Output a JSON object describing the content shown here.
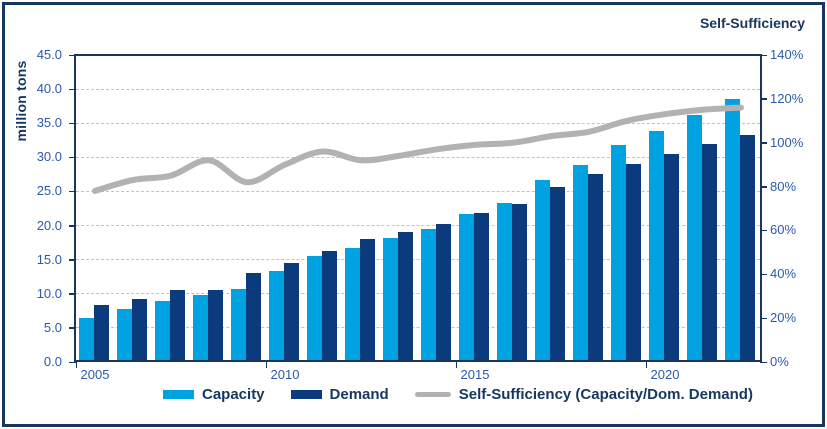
{
  "colors": {
    "capacity": "#00A2E2",
    "demand": "#0B3B7C",
    "line": "#B2B2B2",
    "navy": "#17375E",
    "tick_text": "#2B5BA9",
    "grid": "#C3C3C3"
  },
  "chart_data": {
    "type": "combo-bar-line",
    "categories": [
      2005,
      2006,
      2007,
      2008,
      2009,
      2010,
      2011,
      2012,
      2013,
      2014,
      2015,
      2016,
      2017,
      2018,
      2019,
      2020,
      2021,
      2022
    ],
    "series": [
      {
        "name": "Capacity",
        "type": "bar",
        "axis": "left",
        "values": [
          6.5,
          7.7,
          9.0,
          9.8,
          10.7,
          13.3,
          15.6,
          16.7,
          18.2,
          19.5,
          21.7,
          23.3,
          26.7,
          28.9,
          31.8,
          33.9,
          36.2,
          38.5
        ]
      },
      {
        "name": "Demand",
        "type": "bar",
        "axis": "left",
        "values": [
          8.3,
          9.2,
          10.6,
          10.6,
          13.0,
          14.5,
          16.2,
          18.0,
          19.1,
          20.2,
          21.8,
          23.2,
          25.7,
          27.6,
          29.0,
          30.5,
          32.0,
          33.3
        ]
      },
      {
        "name": "Self-Sufficiency (Capacity/Dom. Demand)",
        "type": "line",
        "axis": "right",
        "values": [
          78,
          83,
          85,
          92,
          82,
          90,
          96,
          92,
          94,
          97,
          99,
          100,
          103,
          105,
          110,
          113,
          115,
          116
        ]
      }
    ],
    "left_axis": {
      "label": "million tons",
      "range": [
        0,
        45
      ],
      "tick_step": 5,
      "tick_labels": [
        "45.0",
        "40.0",
        "35.0",
        "30.0",
        "25.0",
        "20.0",
        "15.0",
        "10.0",
        "5.0",
        "0.0"
      ]
    },
    "right_axis": {
      "label": "Self-Sufficiency",
      "range": [
        0,
        140
      ],
      "tick_step": 20,
      "unit": "%",
      "tick_labels": [
        "140%",
        "120%",
        "100%",
        "80%",
        "60%",
        "40%",
        "20%",
        "0%"
      ]
    },
    "x_axis": {
      "tick_labels": [
        "2005",
        "2010",
        "2015",
        "2020"
      ]
    },
    "grid": "horizontal-dashed",
    "legend_position": "bottom"
  }
}
